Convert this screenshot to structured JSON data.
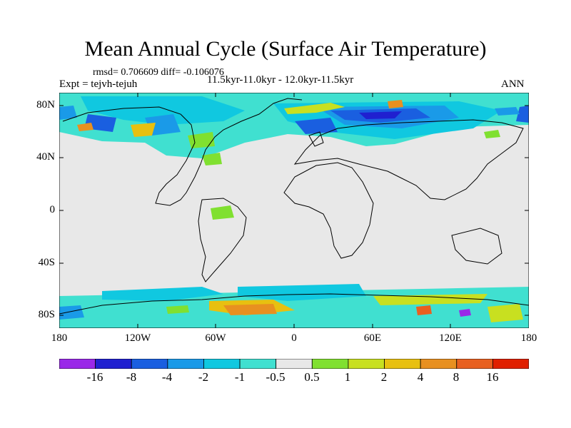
{
  "title": "Mean Annual Cycle (Surface Air Temperature)",
  "stats": "rmsd= 0.706609 diff= -0.106076",
  "experiment": "Expt = tejvh-tejuh",
  "period": "11.5kyr-11.0kyr - 12.0kyr-11.5kyr",
  "season": "ANN",
  "lat_labels": [
    "80N",
    "40N",
    "0",
    "40S",
    "80S"
  ],
  "lon_labels": [
    "180",
    "120W",
    "60W",
    "0",
    "60E",
    "120E",
    "180"
  ],
  "colorbar": {
    "labels": [
      "-16",
      "-8",
      "-4",
      "-2",
      "-1",
      "-0.5",
      "0.5",
      "1",
      "2",
      "4",
      "8",
      "16"
    ],
    "colors": [
      "#9a28e8",
      "#2020d0",
      "#1a5fe0",
      "#1a9ae8",
      "#10c8e0",
      "#40e0d0",
      "#e8e8e8",
      "#80e030",
      "#c8e020",
      "#e8c010",
      "#e89020",
      "#e86020",
      "#e02000"
    ]
  },
  "map_colors": {
    "background": "#e8e8e8",
    "coast": "#000000"
  }
}
